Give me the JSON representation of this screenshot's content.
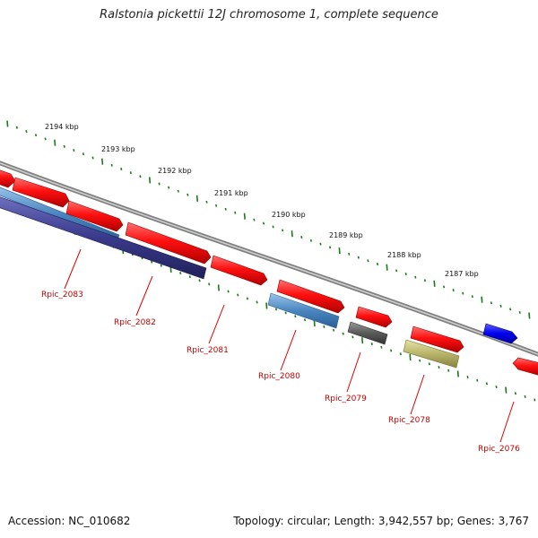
{
  "title": "Ralstonia pickettii 12J chromosome 1, complete sequence",
  "footer": {
    "accession": "Accession: NC_010682",
    "summary": "Topology: circular; Length: 3,942,557 bp; Genes: 3,767"
  },
  "ruler": [
    "2194 kbp",
    "2193 kbp",
    "2192 kbp",
    "2191 kbp",
    "2190 kbp",
    "2189 kbp",
    "2188 kbp",
    "2187 kbp"
  ],
  "genes": [
    {
      "label": "Rpic_2083",
      "color": "#e00000"
    },
    {
      "label": "Rpic_2082",
      "color": "#e00000"
    },
    {
      "label": "Rpic_2081",
      "color": "#e00000"
    },
    {
      "label": "Rpic_2080",
      "color": "#e00000"
    },
    {
      "label": "Rpic_2079",
      "color": "#e00000"
    },
    {
      "label": "Rpic_2078",
      "color": "#e00000"
    },
    {
      "label": "Rpic_2076",
      "color": "#e00000"
    }
  ],
  "feature_colors": {
    "cds": "#e00000",
    "gene_dark_blue": "#3a3a8c",
    "gene_steel_blue": "#4a86c0",
    "gene_gray": "#5a5a5a",
    "gene_olive": "#b8b46a",
    "gene_blue": "#0000ee",
    "backbone": "#808080",
    "ticks": "#1a7a1a"
  }
}
